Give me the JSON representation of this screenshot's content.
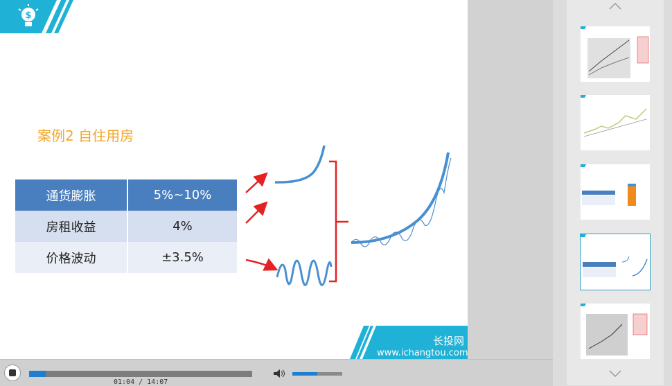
{
  "slide": {
    "title": "案例2 自住用房",
    "table": {
      "rows": [
        {
          "label": "通货膨胀",
          "value": "5%~10%"
        },
        {
          "label": "房租收益",
          "value": "4%"
        },
        {
          "label": "价格波动",
          "value": "±3.5%"
        }
      ]
    },
    "brand": {
      "name": "长投网",
      "url": "www.ichangtou.com"
    }
  },
  "player": {
    "time": "01:04 / 14:07",
    "progress": 0.076,
    "volume": 0.5
  },
  "colors": {
    "accent": "#1fb1d6",
    "header_blue": "#4a7fbf",
    "title_orange": "#f2a72a",
    "arrow_red": "#e52222",
    "curve_blue": "#4a8fd0"
  },
  "icons": [
    "lightbulb-dollar-icon",
    "stop-icon",
    "volume-icon",
    "chevron-up-icon",
    "chevron-down-icon"
  ]
}
